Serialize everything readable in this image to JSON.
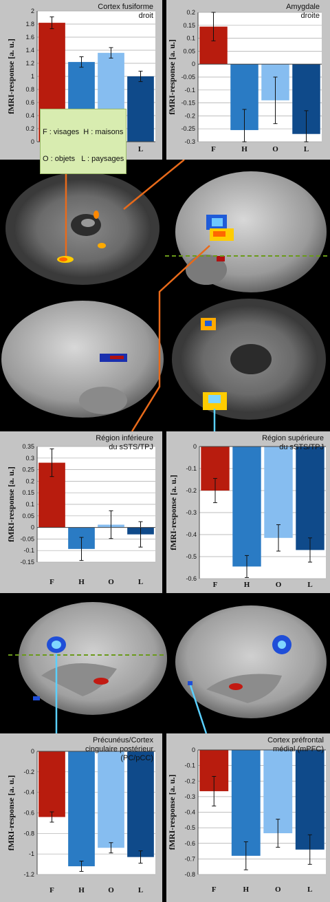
{
  "legend_box": {
    "line1": "F : visages  H : maisons",
    "line2": "O : objets   L : paysages"
  },
  "colors": {
    "F": "#b81c0e",
    "H": "#2a7bc4",
    "O": "#86bdf0",
    "L": "#0f4a8a"
  },
  "chart_data": [
    {
      "type": "bar",
      "title": [
        "Cortex fusiforme",
        "droit"
      ],
      "ylabel": "fMRI-response [a. u.]",
      "categories": [
        "F",
        "H",
        "O",
        "L"
      ],
      "values": [
        1.82,
        1.22,
        1.36,
        1.0
      ],
      "errors": [
        0.09,
        0.08,
        0.08,
        0.08
      ],
      "ylim": [
        0,
        2
      ],
      "yticks": [
        "0",
        "0.2",
        "0.4",
        "0.6",
        "0.8",
        "1",
        "1.2",
        "1.4",
        "1.6",
        "1.8",
        "2"
      ],
      "grid": true
    },
    {
      "type": "bar",
      "title": [
        "Amygdale",
        "droite"
      ],
      "ylabel": "fMRI-response [a. u.]",
      "categories": [
        "F",
        "H",
        "O",
        "L"
      ],
      "values": [
        0.145,
        -0.255,
        -0.14,
        -0.27
      ],
      "errors": [
        0.055,
        0.08,
        0.09,
        0.09
      ],
      "ylim": [
        -0.3,
        0.2
      ],
      "yticks": [
        "-0.3",
        "-0.25",
        "-0.2",
        "-0.15",
        "-0.1",
        "-0.05",
        "0",
        "0.05",
        "0.1",
        "0.15",
        "0.2"
      ],
      "grid": true
    },
    {
      "type": "bar",
      "title": [
        "Région inférieure",
        "du sSTS/TPJ"
      ],
      "ylabel": "fMRI-response [a. u.]",
      "categories": [
        "F",
        "H",
        "O",
        "L"
      ],
      "values": [
        0.28,
        -0.093,
        0.012,
        -0.03
      ],
      "errors": [
        0.06,
        0.05,
        0.06,
        0.055
      ],
      "ylim": [
        -0.15,
        0.35
      ],
      "yticks": [
        "-0.15",
        "-0.1",
        "-0.05",
        "0",
        "0.05",
        "0.1",
        "0.15",
        "0.2",
        "0.25",
        "0.3",
        "0.35"
      ],
      "grid": true
    },
    {
      "type": "bar",
      "title": [
        "Région supérieure",
        "du sSTS/TPJ"
      ],
      "ylabel": "fMRI-response [a. u.]",
      "categories": [
        "F",
        "H",
        "O",
        "L"
      ],
      "values": [
        -0.2,
        -0.545,
        -0.415,
        -0.47
      ],
      "errors": [
        0.055,
        0.05,
        0.06,
        0.055
      ],
      "ylim": [
        -0.6,
        0
      ],
      "yticks": [
        "-0.6",
        "-0.5",
        "-0.4",
        "-0.3",
        "-0.2",
        "-0.1",
        "0"
      ],
      "grid": true
    },
    {
      "type": "bar",
      "title": [
        "Précunéus/Cortex",
        "cingulaire postérieur",
        "(PC/pCC)"
      ],
      "ylabel": "fMRI-response [a. u.]",
      "categories": [
        "F",
        "H",
        "O",
        "L"
      ],
      "values": [
        -0.64,
        -1.12,
        -0.94,
        -1.03
      ],
      "errors": [
        0.05,
        0.05,
        0.05,
        0.06
      ],
      "ylim": [
        -1.2,
        0
      ],
      "yticks": [
        "-1.2",
        "-1",
        "-0.8",
        "-0.6",
        "-0.4",
        "-0.2",
        "0"
      ],
      "grid": true
    },
    {
      "type": "bar",
      "title": [
        "Cortex préfrontal",
        "médial (mPFC)"
      ],
      "ylabel": "fMRI-response [a. u.]",
      "categories": [
        "F",
        "H",
        "O",
        "L"
      ],
      "values": [
        -0.265,
        -0.68,
        -0.535,
        -0.64
      ],
      "errors": [
        0.095,
        0.09,
        0.09,
        0.095
      ],
      "ylim": [
        -0.8,
        0
      ],
      "yticks": [
        "-0.8",
        "-0.7",
        "-0.6",
        "-0.5",
        "-0.4",
        "-0.3",
        "-0.2",
        "-0.1",
        "0"
      ],
      "grid": true
    }
  ]
}
